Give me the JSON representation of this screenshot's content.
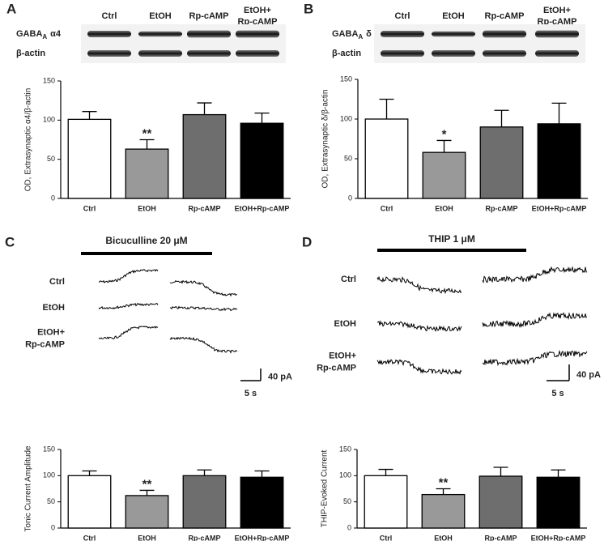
{
  "chart_data": [
    {
      "type": "bar",
      "ylabel": "OD, Extrasynaptic α4/β-actin",
      "categories": [
        "Ctrl",
        "EtOH",
        "Rp-cAMP",
        "EtOH+Rp-cAMP"
      ],
      "values": [
        101,
        63,
        107,
        96
      ],
      "errors": [
        10,
        12,
        15,
        13
      ],
      "colors": [
        "#ffffff",
        "#999999",
        "#6e6e6e",
        "#000000"
      ],
      "significance": [
        null,
        "**",
        null,
        null
      ],
      "ylim": [
        0,
        150
      ],
      "yticks": [
        0,
        50,
        100,
        150
      ]
    },
    {
      "type": "bar",
      "ylabel": "OD, Extrasynaptic δ/β-actin",
      "categories": [
        "Ctrl",
        "EtOH",
        "Rp-cAMP",
        "EtOH+Rp-cAMP"
      ],
      "values": [
        100,
        58,
        90,
        94
      ],
      "errors": [
        25,
        15,
        21,
        26
      ],
      "colors": [
        "#ffffff",
        "#999999",
        "#6e6e6e",
        "#000000"
      ],
      "significance": [
        null,
        "*",
        null,
        null
      ],
      "ylim": [
        0,
        150
      ],
      "yticks": [
        0,
        50,
        100,
        150
      ]
    },
    {
      "type": "bar",
      "ylabel": "Tonic Current Amplitude",
      "categories": [
        "Ctrl",
        "EtOH",
        "Rp-cAMP",
        "EtOH+Rp-cAMP"
      ],
      "values": [
        100,
        62,
        100,
        97
      ],
      "errors": [
        9,
        10,
        11,
        12
      ],
      "colors": [
        "#ffffff",
        "#999999",
        "#6e6e6e",
        "#000000"
      ],
      "significance": [
        null,
        "**",
        null,
        null
      ],
      "ylim": [
        0,
        150
      ],
      "yticks": [
        0,
        50,
        100,
        150
      ]
    },
    {
      "type": "bar",
      "ylabel": "THIP-Evoked Current",
      "categories": [
        "Ctrl",
        "EtOH",
        "Rp-cAMP",
        "EtOH+Rp-cAMP"
      ],
      "values": [
        100,
        64,
        99,
        97
      ],
      "errors": [
        12,
        11,
        17,
        14
      ],
      "colors": [
        "#ffffff",
        "#999999",
        "#6e6e6e",
        "#000000"
      ],
      "significance": [
        null,
        "**",
        null,
        null
      ],
      "ylim": [
        0,
        150
      ],
      "yticks": [
        0,
        50,
        100,
        150
      ]
    }
  ],
  "panels": [
    {
      "letter": "A",
      "lanes": [
        [
          "Ctrl"
        ],
        [
          "EtOH"
        ],
        [
          "Rp-cAMP"
        ],
        [
          "EtOH+",
          "Rp-cAMP"
        ]
      ],
      "protein": {
        "name": "GABA",
        "subscript": "A",
        "subunit": "α4"
      },
      "loading": "β-actin"
    },
    {
      "letter": "B",
      "lanes": [
        [
          "Ctrl"
        ],
        [
          "EtOH"
        ],
        [
          "Rp-cAMP"
        ],
        [
          "EtOH+",
          "Rp-cAMP"
        ]
      ],
      "protein": {
        "name": "GABA",
        "subscript": "A",
        "subunit": "δ"
      },
      "loading": "β-actin"
    },
    {
      "letter": "C",
      "drug": "Bicuculline 20 μM",
      "rows": [
        [
          "Ctrl"
        ],
        [
          "EtOH"
        ],
        [
          "EtOH+",
          "Rp-cAMP"
        ]
      ],
      "scale_y": "40 pA",
      "scale_x": "5 s"
    },
    {
      "letter": "D",
      "drug": "THIP 1 μM",
      "rows": [
        [
          "Ctrl"
        ],
        [
          "EtOH"
        ],
        [
          "EtOH+",
          "Rp-cAMP"
        ]
      ],
      "scale_y": "40 pA",
      "scale_x": "5 s"
    }
  ]
}
